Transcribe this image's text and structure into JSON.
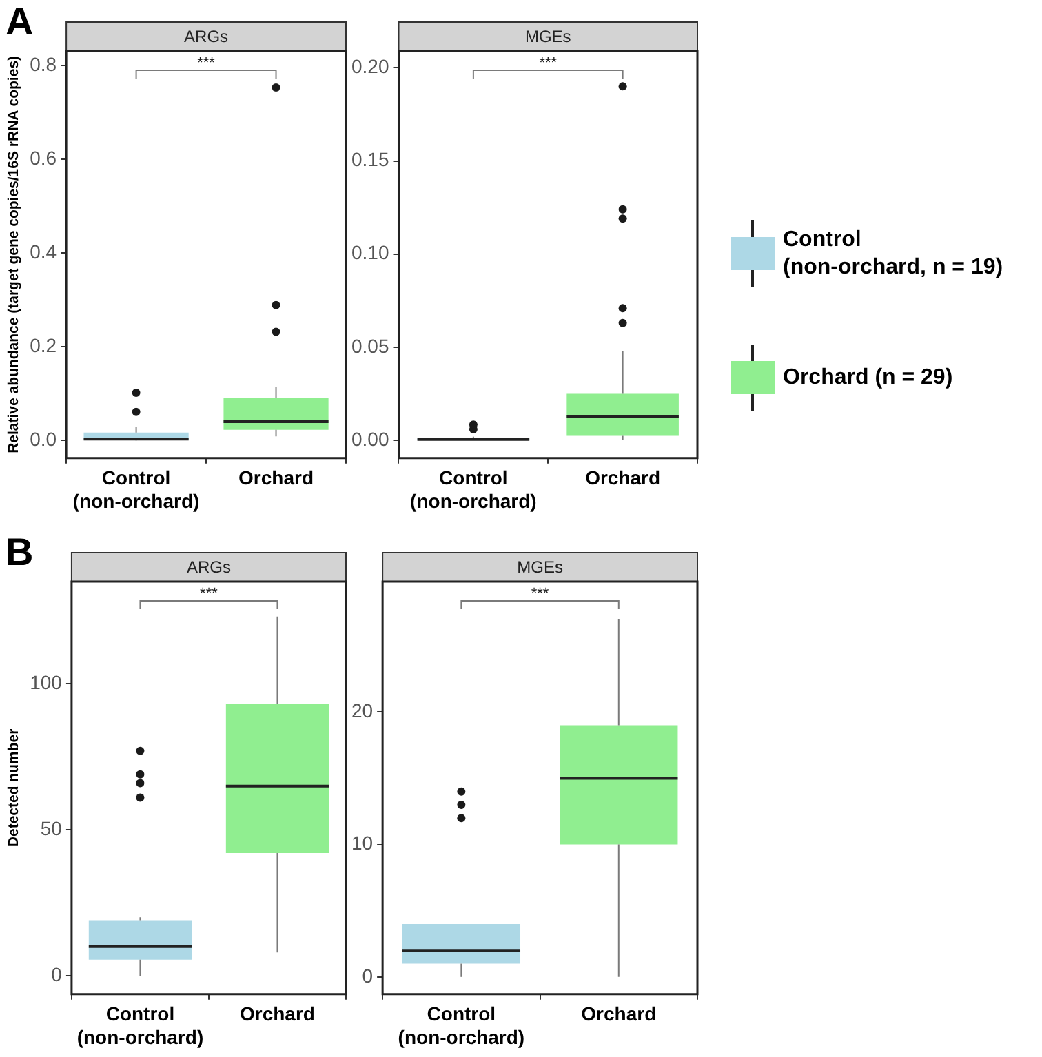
{
  "chart_data": [
    {
      "type": "box",
      "title": "ARGs",
      "ylabel": "Relative abundance (target gene copies/16S rRNA copies)",
      "categories": [
        "Control\n(non-orchard)",
        "Orchard"
      ],
      "ylim": [
        -0.0375,
        0.831
      ],
      "yticks": [
        {
          "value": 0,
          "label": "0.0"
        },
        {
          "value": 0.2,
          "label": "0.2"
        },
        {
          "value": 0.4,
          "label": "0.4"
        },
        {
          "value": 0.6,
          "label": "0.6"
        },
        {
          "value": 0.8,
          "label": "0.8"
        }
      ],
      "grid": false,
      "legend": false,
      "annotations": [
        "A",
        "***"
      ],
      "series": [
        {
          "color": "#add8e6",
          "boxes": [
            {
              "low": 0,
              "q1": 0.002,
              "median": 0.003,
              "q3": 0.017,
              "high": 0.03,
              "outliers": [
                0.061,
                0.102
              ]
            },
            null
          ]
        },
        {
          "color": "#90ee90",
          "boxes": [
            null,
            {
              "low": 0.009,
              "q1": 0.023,
              "median": 0.04,
              "q3": 0.09,
              "high": 0.115,
              "outliers": [
                0.232,
                0.289,
                0.753
              ]
            }
          ]
        }
      ]
    },
    {
      "type": "box",
      "title": "MGEs",
      "categories": [
        "Control\n(non-orchard)",
        "Orchard"
      ],
      "ylim": [
        -0.0095,
        0.209
      ],
      "yticks": [
        {
          "value": 0,
          "label": "0.00"
        },
        {
          "value": 0.05,
          "label": "0.05"
        },
        {
          "value": 0.1,
          "label": "0.10"
        },
        {
          "value": 0.15,
          "label": "0.15"
        },
        {
          "value": 0.2,
          "label": "0.20"
        }
      ],
      "grid": false,
      "legend": "right",
      "annotations": [
        "***"
      ],
      "series": [
        {
          "name": "Control\n(non-orchard, n = 19)",
          "color": "#add8e6",
          "boxes": [
            {
              "low": 0,
              "q1": 0,
              "median": 0.0005,
              "q3": 0.001,
              "high": 0.002,
              "outliers": [
                0.006,
                0.0085
              ]
            },
            null
          ]
        },
        {
          "name": "Orchard (n = 29)",
          "color": "#90ee90",
          "boxes": [
            null,
            {
              "low": 0.0002,
              "q1": 0.0024,
              "median": 0.013,
              "q3": 0.025,
              "high": 0.048,
              "outliers": [
                0.063,
                0.071,
                0.119,
                0.124,
                0.19
              ]
            }
          ]
        }
      ]
    },
    {
      "type": "box",
      "title": "ARGs",
      "ylabel": "Detected number",
      "categories": [
        "Control\n(non-orchard)",
        "Orchard"
      ],
      "ylim": [
        -6.3,
        135
      ],
      "yticks": [
        0,
        50,
        100
      ],
      "grid": false,
      "legend": false,
      "annotations": [
        "B",
        "***"
      ],
      "series": [
        {
          "color": "#add8e6",
          "boxes": [
            {
              "low": 0,
              "q1": 5.5,
              "median": 10,
              "q3": 19,
              "high": 20,
              "outliers": [
                61,
                66,
                69,
                77
              ]
            },
            null
          ]
        },
        {
          "color": "#90ee90",
          "boxes": [
            null,
            {
              "low": 8,
              "q1": 42,
              "median": 65,
              "q3": 93,
              "high": 123
            }
          ]
        }
      ]
    },
    {
      "type": "box",
      "title": "MGEs",
      "categories": [
        "Control\n(non-orchard)",
        "Orchard"
      ],
      "ylim": [
        -1.3,
        29.85
      ],
      "yticks": [
        0,
        10,
        20
      ],
      "grid": false,
      "legend": false,
      "annotations": [
        "***"
      ],
      "series": [
        {
          "color": "#add8e6",
          "boxes": [
            {
              "low": 0,
              "q1": 1,
              "median": 2,
              "q3": 4,
              "high": 4,
              "outliers": [
                12,
                13,
                14
              ]
            },
            null
          ]
        },
        {
          "color": "#90ee90",
          "boxes": [
            null,
            {
              "low": 0,
              "q1": 10,
              "median": 15,
              "q3": 19,
              "high": 27
            }
          ]
        }
      ]
    }
  ]
}
